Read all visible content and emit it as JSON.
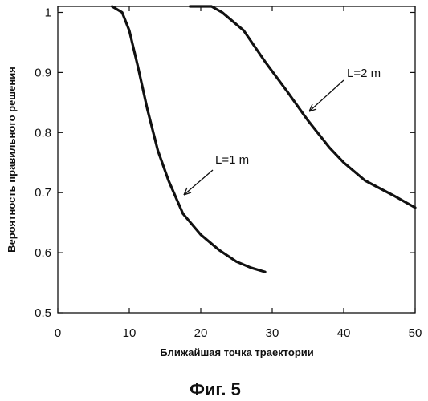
{
  "chart_data": {
    "type": "line",
    "xlabel": "Ближайшая точка траектории",
    "ylabel": "Вероятность правильного решения",
    "xlim": [
      0,
      50
    ],
    "ylim": [
      0.5,
      1.01
    ],
    "xticks": [
      0,
      10,
      20,
      30,
      40,
      50
    ],
    "yticks": [
      {
        "value": 0.5,
        "label": "0.5"
      },
      {
        "value": 0.6,
        "label": "0.6"
      },
      {
        "value": 0.7,
        "label": "0.7"
      },
      {
        "value": 0.8,
        "label": "0.8"
      },
      {
        "value": 0.9,
        "label": "0.9"
      },
      {
        "value": 1.0,
        "label": "1"
      }
    ],
    "grid": false,
    "legend": "none",
    "series": [
      {
        "x": [
          7.6,
          9.0,
          10.0,
          11.2,
          12.5,
          14.0,
          15.5,
          17.5,
          20.0,
          22.5,
          25.0,
          27.0,
          29.0
        ],
        "y": [
          1.01,
          1.0,
          0.97,
          0.91,
          0.84,
          0.77,
          0.72,
          0.665,
          0.63,
          0.605,
          0.585,
          0.575,
          0.568
        ]
      },
      {
        "x": [
          18.5,
          21.5,
          23.0,
          26.0,
          29.0,
          32.0,
          35.0,
          38.0,
          40.0,
          43.0,
          47.0,
          50.0
        ],
        "y": [
          1.01,
          1.01,
          1.0,
          0.97,
          0.918,
          0.87,
          0.82,
          0.775,
          0.75,
          0.72,
          0.695,
          0.675
        ]
      }
    ],
    "annotations": [
      {
        "text": "L=1 m",
        "point": [
          17.5,
          0.69
        ]
      },
      {
        "text": "L=2 m",
        "point": [
          35.0,
          0.83
        ]
      }
    ]
  },
  "caption": "Фиг. 5"
}
